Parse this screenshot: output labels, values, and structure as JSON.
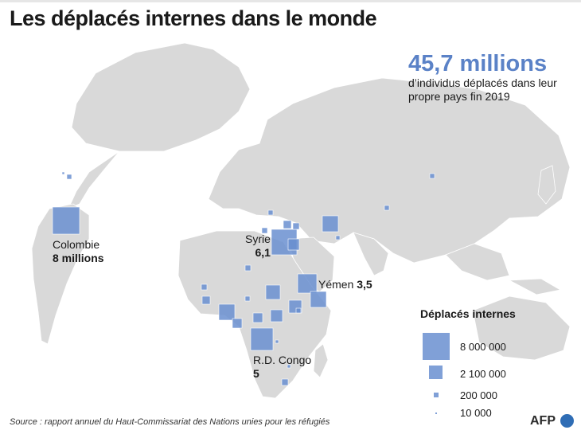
{
  "title": "Les déplacés internes dans le monde",
  "headline": {
    "value": "45,7 millions",
    "text": "d’individus déplacés dans leur propre pays fin 2019"
  },
  "colors": {
    "land": "#d9d9d9",
    "box": "#6a8fd0",
    "accent": "#5b82c7"
  },
  "labels": {
    "colombia": {
      "name": "Colombie",
      "value": "8 millions"
    },
    "syria": {
      "name": "Syrie",
      "value": "6,1"
    },
    "yemen": {
      "name": "Yémen",
      "value": "3,5"
    },
    "drc": {
      "name": "R.D. Congo",
      "value": "5"
    }
  },
  "legend": {
    "title": "Déplacés internes",
    "items": [
      {
        "value": 8000000,
        "label": "8 000 000"
      },
      {
        "value": 2100000,
        "label": "2 100 000"
      },
      {
        "value": 200000,
        "label": "200 000"
      },
      {
        "value": 10000,
        "label": "10 000"
      }
    ]
  },
  "source": "Source : rapport annuel du Haut-Commissariat des Nations unies pour les réfugiés",
  "brand": "AFP"
}
